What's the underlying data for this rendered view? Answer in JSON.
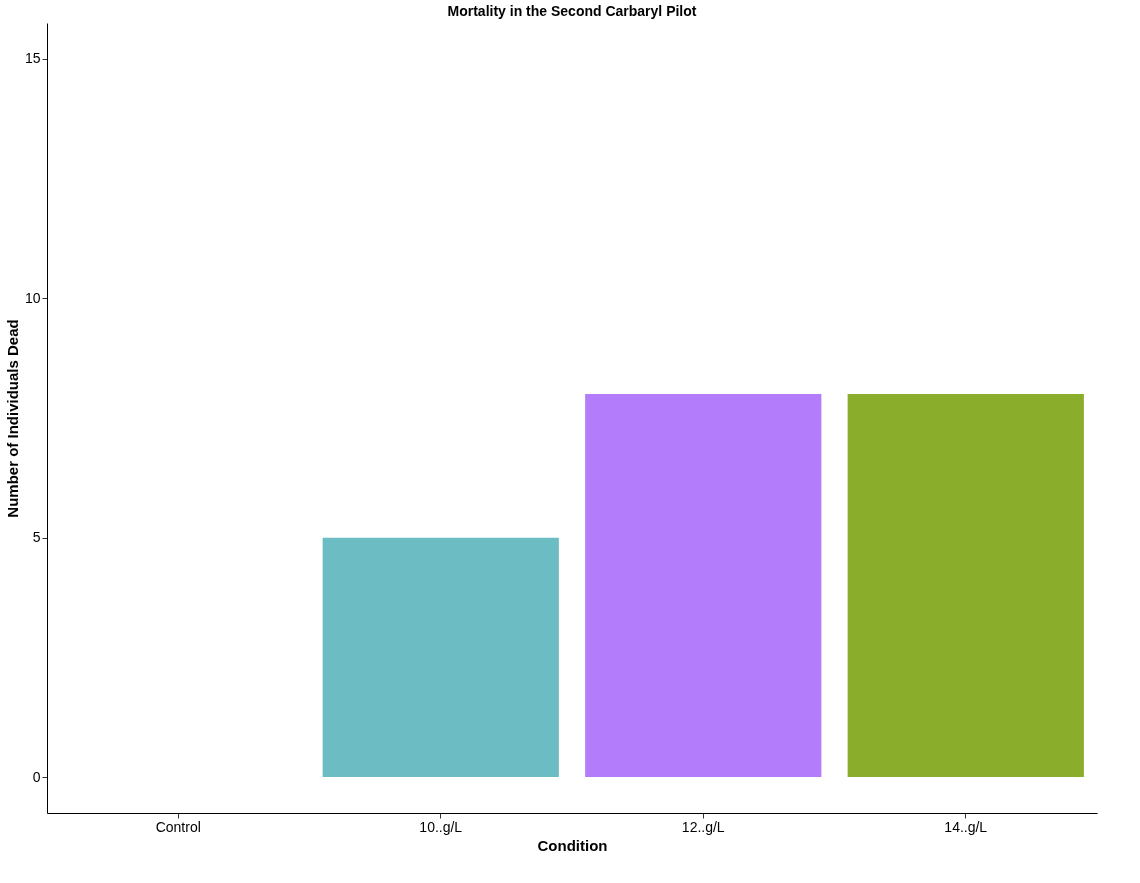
{
  "chart_data": {
    "type": "bar",
    "title": "Mortality in the Second Carbaryl Pilot",
    "xlabel": "Condition",
    "ylabel": "Number of Individuals Dead",
    "categories": [
      "Control",
      "10..g/L",
      "12..g/L",
      "14..g/L"
    ],
    "values": [
      0,
      5,
      8,
      8
    ],
    "colors": [
      null,
      "#6cbdc3",
      "#b37cfb",
      "#8aad2c"
    ],
    "ylim": [
      -0.75,
      15.75
    ],
    "yticks": [
      0,
      5,
      10,
      15
    ],
    "grid": false
  }
}
